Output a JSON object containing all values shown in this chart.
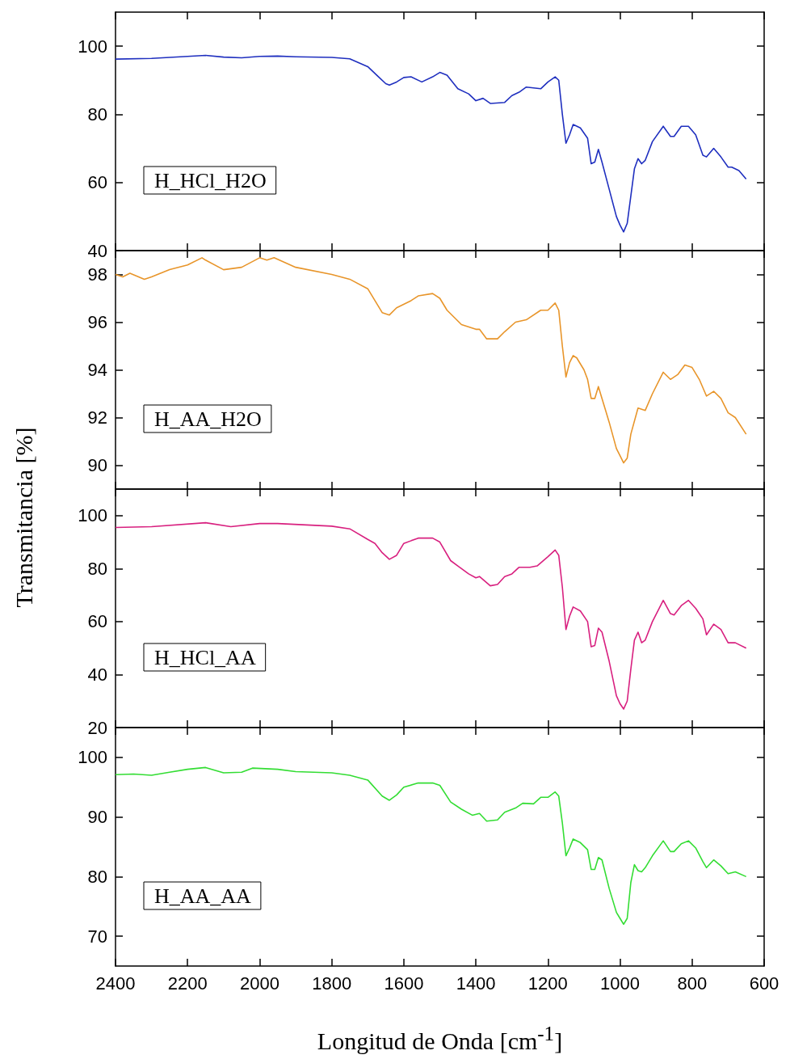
{
  "chart_data": [
    {
      "type": "line",
      "x": [
        2400,
        2300,
        2200,
        2150,
        2100,
        2050,
        2000,
        1950,
        1900,
        1800,
        1750,
        1700,
        1670,
        1650,
        1640,
        1620,
        1600,
        1580,
        1550,
        1520,
        1500,
        1480,
        1450,
        1420,
        1400,
        1380,
        1360,
        1320,
        1300,
        1280,
        1260,
        1220,
        1200,
        1180,
        1170,
        1160,
        1150,
        1140,
        1130,
        1110,
        1090,
        1080,
        1070,
        1060,
        1050,
        1030,
        1010,
        1000,
        990,
        980,
        970,
        960,
        950,
        940,
        930,
        910,
        880,
        860,
        850,
        830,
        810,
        790,
        770,
        760,
        740,
        720,
        700,
        690,
        670,
        650
      ],
      "series": [
        {
          "name": "H_HCl_H2O",
          "color": "#1f2fbf",
          "values": [
            96.2,
            96.4,
            97.0,
            97.3,
            96.8,
            96.6,
            97.0,
            97.1,
            96.9,
            96.7,
            96.3,
            94.0,
            91.0,
            89.0,
            88.6,
            89.5,
            90.8,
            91.0,
            89.5,
            91.0,
            92.3,
            91.5,
            87.5,
            86.0,
            84.0,
            84.7,
            83.2,
            83.5,
            85.5,
            86.5,
            88.0,
            87.5,
            89.5,
            91.0,
            90.0,
            80.0,
            71.5,
            74.0,
            77.0,
            76.0,
            73.0,
            65.5,
            66.0,
            69.7,
            66.0,
            58.0,
            50.0,
            47.5,
            45.5,
            48.0,
            56.0,
            64.0,
            67.0,
            65.5,
            66.5,
            72.0,
            76.5,
            73.5,
            73.5,
            76.5,
            76.5,
            74.0,
            68.0,
            67.5,
            70.0,
            67.5,
            64.5,
            64.5,
            63.5,
            61.0
          ]
        }
      ],
      "xlim": [
        2400,
        600
      ],
      "xticks": [
        2400,
        2200,
        2000,
        1800,
        1600,
        1400,
        1200,
        1000,
        800,
        600
      ],
      "ylim": [
        40,
        110
      ],
      "yticks": [
        40,
        60,
        80,
        100
      ],
      "tick_labels": "y",
      "legend": "bottom left",
      "grid": false,
      "marker": "none",
      "line_style": "solid"
    },
    {
      "type": "line",
      "x": [
        2400,
        2380,
        2360,
        2320,
        2300,
        2250,
        2200,
        2160,
        2150,
        2100,
        2050,
        2000,
        1980,
        1960,
        1900,
        1800,
        1750,
        1700,
        1660,
        1640,
        1620,
        1580,
        1560,
        1520,
        1500,
        1480,
        1440,
        1400,
        1390,
        1370,
        1340,
        1320,
        1290,
        1260,
        1220,
        1200,
        1180,
        1170,
        1160,
        1150,
        1140,
        1130,
        1120,
        1100,
        1090,
        1080,
        1070,
        1060,
        1050,
        1030,
        1010,
        1000,
        990,
        980,
        970,
        950,
        930,
        910,
        880,
        860,
        840,
        820,
        800,
        780,
        760,
        740,
        720,
        700,
        680,
        650
      ],
      "series": [
        {
          "name": "H_AA_H2O",
          "color": "#e8952a",
          "values": [
            98.0,
            97.9,
            98.05,
            97.8,
            97.9,
            98.2,
            98.4,
            98.7,
            98.6,
            98.2,
            98.3,
            98.7,
            98.6,
            98.7,
            98.3,
            98.0,
            97.8,
            97.4,
            96.4,
            96.3,
            96.6,
            96.9,
            97.1,
            97.2,
            97.0,
            96.5,
            95.9,
            95.7,
            95.7,
            95.3,
            95.3,
            95.6,
            96.0,
            96.1,
            96.5,
            96.5,
            96.8,
            96.5,
            95.0,
            93.7,
            94.3,
            94.6,
            94.5,
            94.0,
            93.6,
            92.8,
            92.8,
            93.3,
            92.8,
            91.8,
            90.7,
            90.4,
            90.1,
            90.3,
            91.3,
            92.4,
            92.3,
            93.0,
            93.9,
            93.6,
            93.8,
            94.2,
            94.1,
            93.6,
            92.9,
            93.1,
            92.8,
            92.2,
            92.0,
            91.3
          ]
        }
      ],
      "xlim": [
        2400,
        600
      ],
      "xticks": [
        2400,
        2200,
        2000,
        1800,
        1600,
        1400,
        1200,
        1000,
        800,
        600
      ],
      "ylim": [
        89,
        99
      ],
      "yticks": [
        90,
        92,
        94,
        96,
        98
      ],
      "tick_labels": "y",
      "legend": "bottom left",
      "grid": false,
      "marker": "none",
      "line_style": "solid"
    },
    {
      "type": "line",
      "ylabel": "Transmitancia [%]",
      "x": [
        2400,
        2300,
        2150,
        2080,
        2000,
        1950,
        1800,
        1750,
        1700,
        1680,
        1660,
        1640,
        1620,
        1600,
        1560,
        1520,
        1500,
        1470,
        1450,
        1420,
        1400,
        1390,
        1360,
        1340,
        1320,
        1300,
        1280,
        1250,
        1230,
        1200,
        1180,
        1170,
        1160,
        1150,
        1140,
        1130,
        1110,
        1090,
        1080,
        1070,
        1060,
        1050,
        1030,
        1010,
        1000,
        990,
        980,
        970,
        960,
        950,
        940,
        930,
        910,
        880,
        860,
        850,
        830,
        810,
        790,
        770,
        760,
        740,
        720,
        700,
        680,
        650
      ],
      "series": [
        {
          "name": "H_HCl_AA",
          "color": "#d8207f",
          "values": [
            95.5,
            95.8,
            97.3,
            95.8,
            97.0,
            97.0,
            96.0,
            95.0,
            91.0,
            89.5,
            86.0,
            83.5,
            85.0,
            89.5,
            91.5,
            91.5,
            90.0,
            83.0,
            81.0,
            78.0,
            76.5,
            77.0,
            73.5,
            74.0,
            77.0,
            78.0,
            80.5,
            80.5,
            81.0,
            84.5,
            87.0,
            85.0,
            73.0,
            57.0,
            62.0,
            65.5,
            64.0,
            60.0,
            50.5,
            51.0,
            57.5,
            56.0,
            45.0,
            32.0,
            29.0,
            27.0,
            30.0,
            42.0,
            53.0,
            56.0,
            52.0,
            53.0,
            60.0,
            68.0,
            63.0,
            62.5,
            66.0,
            68.0,
            65.0,
            61.0,
            55.0,
            59.0,
            57.0,
            52.0,
            52.0,
            50.0
          ]
        }
      ],
      "xlim": [
        2400,
        600
      ],
      "xticks": [
        2400,
        2200,
        2000,
        1800,
        1600,
        1400,
        1200,
        1000,
        800,
        600
      ],
      "ylim": [
        20,
        110
      ],
      "yticks": [
        20,
        40,
        60,
        80,
        100
      ],
      "tick_labels": "y",
      "legend": "bottom left",
      "grid": false,
      "marker": "none",
      "line_style": "solid"
    },
    {
      "type": "line",
      "xlabel": "Longitud de Onda [cm$^{-1}$]",
      "x": [
        2400,
        2350,
        2300,
        2250,
        2200,
        2150,
        2100,
        2050,
        2020,
        1950,
        1900,
        1800,
        1750,
        1700,
        1660,
        1640,
        1620,
        1600,
        1560,
        1520,
        1500,
        1470,
        1440,
        1410,
        1390,
        1370,
        1340,
        1320,
        1290,
        1270,
        1240,
        1220,
        1200,
        1180,
        1170,
        1160,
        1150,
        1140,
        1130,
        1110,
        1090,
        1080,
        1070,
        1060,
        1050,
        1030,
        1010,
        1000,
        990,
        980,
        970,
        960,
        950,
        940,
        930,
        910,
        880,
        860,
        850,
        830,
        810,
        790,
        770,
        760,
        740,
        720,
        700,
        680,
        650
      ],
      "series": [
        {
          "name": "H_AA_AA",
          "color": "#33dd33",
          "values": [
            97.1,
            97.2,
            97.0,
            97.5,
            98.0,
            98.3,
            97.4,
            97.5,
            98.2,
            98.0,
            97.6,
            97.4,
            97.0,
            96.2,
            93.5,
            92.8,
            93.7,
            95.0,
            95.7,
            95.7,
            95.3,
            92.5,
            91.3,
            90.3,
            90.6,
            89.3,
            89.5,
            90.8,
            91.5,
            92.3,
            92.2,
            93.3,
            93.3,
            94.2,
            93.5,
            89.0,
            83.5,
            84.8,
            86.3,
            85.7,
            84.5,
            81.2,
            81.2,
            83.2,
            82.8,
            78.0,
            74.0,
            73.0,
            72.0,
            73.0,
            79.0,
            82.0,
            81.0,
            80.8,
            81.5,
            83.5,
            86.0,
            84.2,
            84.2,
            85.5,
            86.0,
            84.8,
            82.5,
            81.5,
            82.8,
            81.8,
            80.5,
            80.8,
            80.0
          ]
        }
      ],
      "xlim": [
        2400,
        600
      ],
      "xticks": [
        2400,
        2200,
        2000,
        1800,
        1600,
        1400,
        1200,
        1000,
        800,
        600
      ],
      "ylim": [
        65,
        105
      ],
      "yticks": [
        70,
        80,
        90,
        100
      ],
      "legend": "bottom left",
      "grid": false,
      "marker": "none",
      "line_style": "solid"
    }
  ]
}
